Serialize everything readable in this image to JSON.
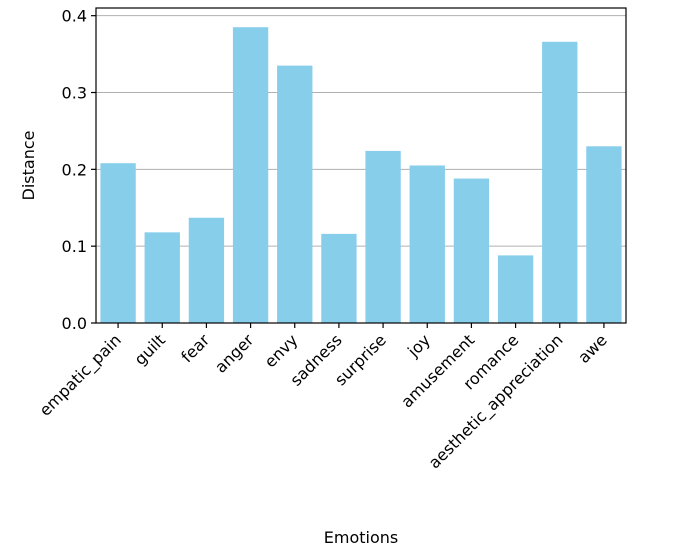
{
  "chart_data": {
    "type": "bar",
    "title": "",
    "xlabel": "Emotions",
    "ylabel": "Distance",
    "categories": [
      "empatic_pain",
      "guilt",
      "fear",
      "anger",
      "envy",
      "sadness",
      "surprise",
      "joy",
      "amusement",
      "romance",
      "aesthetic_appreciation",
      "awe"
    ],
    "values": [
      0.208,
      0.118,
      0.137,
      0.385,
      0.335,
      0.116,
      0.224,
      0.205,
      0.188,
      0.088,
      0.366,
      0.23
    ],
    "ylim": [
      0,
      0.41
    ],
    "yticks": [
      0.0,
      0.1,
      0.2,
      0.3,
      0.4
    ],
    "ytick_labels": [
      "0.0",
      "0.1",
      "0.2",
      "0.3",
      "0.4"
    ],
    "grid": "y",
    "bar_color": "#87ceeb",
    "grid_color": "#b0b0b0",
    "axis_color": "#000000"
  }
}
